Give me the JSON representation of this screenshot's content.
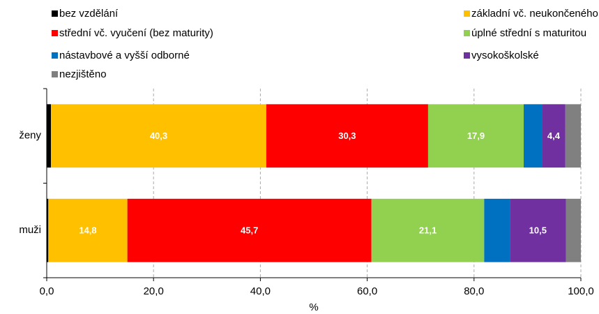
{
  "chart_data": {
    "type": "stacked-bar-horizontal",
    "categories": [
      "ženy",
      "muži"
    ],
    "series": [
      {
        "name": "bez vzdělání",
        "color": "#000000",
        "values": [
          0.8,
          0.3
        ],
        "value_labels": [
          null,
          null
        ]
      },
      {
        "name": "základní vč. neukončeného",
        "color": "#FFC000",
        "values": [
          40.3,
          14.8
        ],
        "value_labels": [
          "40,3",
          "14,8"
        ]
      },
      {
        "name": "střední vč. vyučení (bez maturity)",
        "color": "#FF0000",
        "values": [
          30.3,
          45.7
        ],
        "value_labels": [
          "30,3",
          "45,7"
        ]
      },
      {
        "name": "úplné střední s maturitou",
        "color": "#92D050",
        "values": [
          17.9,
          21.1
        ],
        "value_labels": [
          "17,9",
          "21,1"
        ]
      },
      {
        "name": "nástavbové a vyšší odborné",
        "color": "#0070C0",
        "values": [
          3.4,
          4.8
        ],
        "value_labels": [
          null,
          null
        ]
      },
      {
        "name": "vysokoškolské",
        "color": "#7030A0",
        "values": [
          4.4,
          10.5
        ],
        "value_labels": [
          "4,4",
          "10,5"
        ]
      },
      {
        "name": "nezjištěno",
        "color": "#808080",
        "values": [
          2.9,
          2.8
        ],
        "value_labels": [
          null,
          null
        ]
      }
    ],
    "xlabel": "%",
    "xlim": [
      0,
      100
    ],
    "xticks": [
      {
        "value": 0,
        "label": "0,0"
      },
      {
        "value": 20,
        "label": "20,0"
      },
      {
        "value": 40,
        "label": "40,0"
      },
      {
        "value": 60,
        "label": "60,0"
      },
      {
        "value": 80,
        "label": "80,0"
      },
      {
        "value": 100,
        "label": "100,0"
      }
    ],
    "grid": true
  }
}
